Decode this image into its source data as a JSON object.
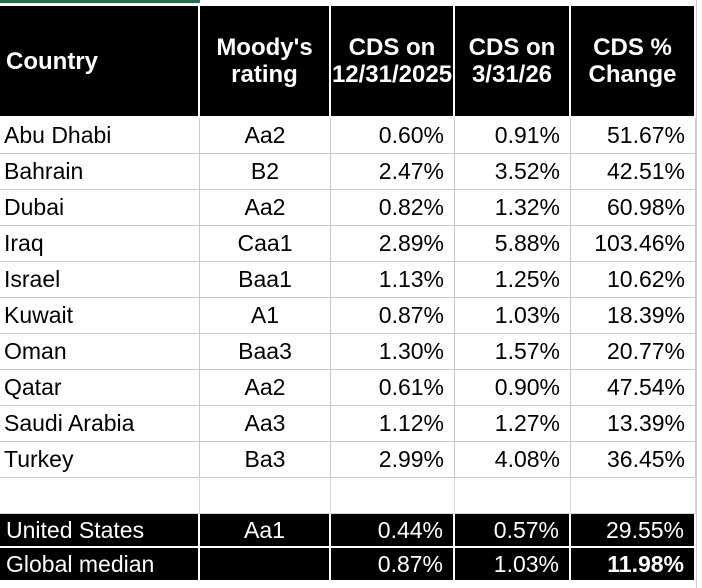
{
  "headers": [
    "Country",
    "Moody's rating",
    "CDS on 12/31/2025",
    "CDS on 3/31/26",
    "CDS % Change"
  ],
  "rows": [
    {
      "country": "Abu Dhabi",
      "rating": "Aa2",
      "cds_start": "0.60%",
      "cds_end": "0.91%",
      "change": "51.67%"
    },
    {
      "country": "Bahrain",
      "rating": "B2",
      "cds_start": "2.47%",
      "cds_end": "3.52%",
      "change": "42.51%"
    },
    {
      "country": "Dubai",
      "rating": "Aa2",
      "cds_start": "0.82%",
      "cds_end": "1.32%",
      "change": "60.98%"
    },
    {
      "country": "Iraq",
      "rating": "Caa1",
      "cds_start": "2.89%",
      "cds_end": "5.88%",
      "change": "103.46%"
    },
    {
      "country": "Israel",
      "rating": "Baa1",
      "cds_start": "1.13%",
      "cds_end": "1.25%",
      "change": "10.62%"
    },
    {
      "country": "Kuwait",
      "rating": "A1",
      "cds_start": "0.87%",
      "cds_end": "1.03%",
      "change": "18.39%"
    },
    {
      "country": "Oman",
      "rating": "Baa3",
      "cds_start": "1.30%",
      "cds_end": "1.57%",
      "change": "20.77%"
    },
    {
      "country": "Qatar",
      "rating": "Aa2",
      "cds_start": "0.61%",
      "cds_end": "0.90%",
      "change": "47.54%"
    },
    {
      "country": "Saudi Arabia",
      "rating": "Aa3",
      "cds_start": "1.12%",
      "cds_end": "1.27%",
      "change": "13.39%"
    },
    {
      "country": "Turkey",
      "rating": "Ba3",
      "cds_start": "2.99%",
      "cds_end": "4.08%",
      "change": "36.45%"
    }
  ],
  "footer_rows": [
    {
      "country": "United States",
      "rating": "Aa1",
      "cds_start": "0.44%",
      "cds_end": "0.57%",
      "change": "29.55%"
    },
    {
      "country": "Global median",
      "rating": "",
      "cds_start": "0.87%",
      "cds_end": "1.03%",
      "change": "11.98%"
    }
  ],
  "colors": {
    "header_bg": "#000000",
    "header_text": "#ffffff",
    "selection_accent": "#1e7145"
  }
}
